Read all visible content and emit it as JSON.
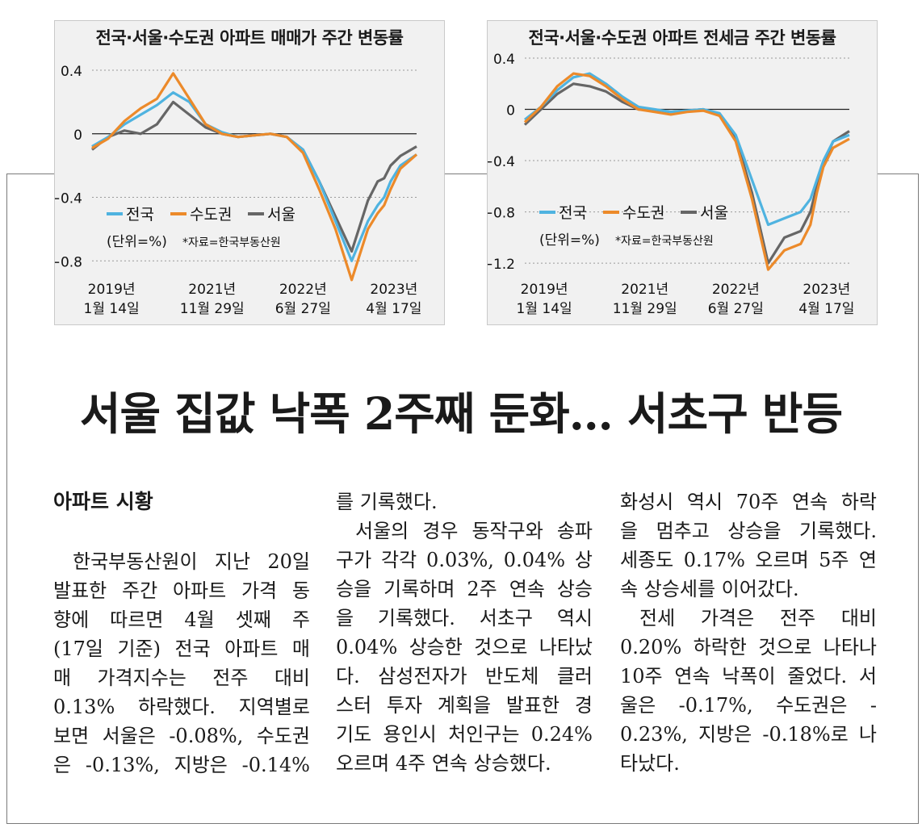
{
  "charts": {
    "left": {
      "title": "전국·서울·수도권 아파트 매매가 주간 변동률",
      "y_ticks": [
        "0.4",
        "0",
        "−0.4",
        "−0.8"
      ],
      "x_ticks": [
        [
          "2019년",
          "1월 14일"
        ],
        [
          "2021년",
          "11월 29일"
        ],
        [
          "2022년",
          "6월 27일"
        ],
        [
          "2023년",
          "4월 17일"
        ]
      ],
      "legend": [
        "전국",
        "수도권",
        "서울"
      ],
      "unit": "(단위=%)",
      "source": "*자료=한국부동산원"
    },
    "right": {
      "title": "전국·서울·수도권 아파트 전세금 주간 변동률",
      "y_ticks": [
        "0.4",
        "0",
        "−0.4",
        "−0.8",
        "−1.2"
      ],
      "x_ticks": [
        [
          "2019년",
          "1월 14일"
        ],
        [
          "2021년",
          "11월 29일"
        ],
        [
          "2022년",
          "6월 27일"
        ],
        [
          "2023년",
          "4월 17일"
        ]
      ],
      "legend": [
        "전국",
        "수도권",
        "서울"
      ],
      "unit": "(단위=%)",
      "source": "*자료=한국부동산원"
    }
  },
  "chart_data": [
    {
      "type": "line",
      "title": "전국·서울·수도권 아파트 매매가 주간 변동률",
      "ylim": [
        -0.9,
        0.4
      ],
      "x": [
        0,
        0.05,
        0.1,
        0.15,
        0.2,
        0.25,
        0.3,
        0.35,
        0.4,
        0.45,
        0.5,
        0.55,
        0.6,
        0.65,
        0.7,
        0.75,
        0.8,
        0.85,
        0.88,
        0.9,
        0.92,
        0.95,
        1.0
      ],
      "series": [
        {
          "name": "전국",
          "color": "#4fb3e0",
          "values": [
            -0.08,
            -0.02,
            0.06,
            0.12,
            0.18,
            0.26,
            0.2,
            0.06,
            0.01,
            -0.02,
            -0.01,
            0.0,
            -0.02,
            -0.1,
            -0.3,
            -0.55,
            -0.8,
            -0.55,
            -0.45,
            -0.4,
            -0.3,
            -0.2,
            -0.13
          ]
        },
        {
          "name": "수도권",
          "color": "#ec8a2a",
          "values": [
            -0.09,
            -0.03,
            0.08,
            0.16,
            0.22,
            0.38,
            0.22,
            0.06,
            0.0,
            -0.02,
            -0.01,
            0.0,
            -0.02,
            -0.12,
            -0.35,
            -0.6,
            -0.92,
            -0.6,
            -0.5,
            -0.45,
            -0.35,
            -0.22,
            -0.13
          ]
        },
        {
          "name": "서울",
          "color": "#666666",
          "values": [
            -0.1,
            -0.02,
            0.02,
            0.0,
            0.06,
            0.2,
            0.12,
            0.04,
            0.0,
            -0.02,
            -0.01,
            0.0,
            -0.02,
            -0.1,
            -0.3,
            -0.52,
            -0.74,
            -0.42,
            -0.3,
            -0.28,
            -0.2,
            -0.14,
            -0.08
          ]
        }
      ]
    },
    {
      "type": "line",
      "title": "전국·서울·수도권 아파트 전세금 주간 변동률",
      "ylim": [
        -1.3,
        0.4
      ],
      "x": [
        0,
        0.05,
        0.1,
        0.15,
        0.2,
        0.25,
        0.3,
        0.35,
        0.4,
        0.45,
        0.5,
        0.55,
        0.6,
        0.65,
        0.7,
        0.75,
        0.8,
        0.85,
        0.88,
        0.9,
        0.92,
        0.95,
        1.0
      ],
      "series": [
        {
          "name": "전국",
          "color": "#4fb3e0",
          "values": [
            -0.08,
            0.02,
            0.15,
            0.25,
            0.28,
            0.2,
            0.1,
            0.02,
            0.0,
            -0.02,
            -0.01,
            0.0,
            -0.03,
            -0.2,
            -0.55,
            -0.9,
            -0.85,
            -0.8,
            -0.7,
            -0.55,
            -0.4,
            -0.25,
            -0.2
          ]
        },
        {
          "name": "수도권",
          "color": "#ec8a2a",
          "values": [
            -0.1,
            0.02,
            0.18,
            0.28,
            0.26,
            0.18,
            0.08,
            0.0,
            -0.02,
            -0.04,
            -0.02,
            -0.01,
            -0.05,
            -0.25,
            -0.7,
            -1.25,
            -1.1,
            -1.05,
            -0.9,
            -0.65,
            -0.45,
            -0.3,
            -0.23
          ]
        },
        {
          "name": "서울",
          "color": "#666666",
          "values": [
            -0.12,
            0.0,
            0.12,
            0.2,
            0.18,
            0.14,
            0.06,
            0.0,
            -0.01,
            -0.02,
            -0.01,
            0.0,
            -0.04,
            -0.22,
            -0.65,
            -1.2,
            -1.0,
            -0.95,
            -0.8,
            -0.6,
            -0.42,
            -0.25,
            -0.17
          ]
        }
      ]
    }
  ],
  "article": {
    "headline": "서울 집값 낙폭 2주째 둔화… 서초구 반등",
    "section": "아파트 시황",
    "col1": [
      "한국부동산원이 지난 20일",
      "발표한 주간 아파트 가격 동",
      "향에 따르면 4월 셋째 주",
      "(17일 기준) 전국 아파트 매",
      "매 가격지수는 전주 대비",
      "0.13% 하락했다. 지역별로",
      "보면 서울은 -0.08%, 수도권",
      "은 -0.13%, 지방은 -0.14%"
    ],
    "col2": [
      "를 기록했다.",
      "서울의 경우 동작구와 송파",
      "구가 각각 0.03%, 0.04% 상",
      "승을 기록하며 2주 연속 상승",
      "을 기록했다. 서초구 역시",
      "0.04% 상승한 것으로 나타났",
      "다. 삼성전자가 반도체 클러",
      "스터 투자 계획을 발표한 경",
      "기도 용인시 처인구는 0.24%",
      "오르며 4주 연속 상승했다."
    ],
    "col3": [
      "화성시 역시 70주 연속 하락",
      "을 멈추고 상승을 기록했다.",
      "세종도 0.17% 오르며 5주 연",
      "속 상승세를 이어갔다.",
      "전세 가격은 전주 대비",
      "0.20% 하락한 것으로 나타나",
      "10주 연속 낙폭이 줄었다. 서",
      "울은 -0.17%, 수도권은 -",
      "0.23%, 지방은 -0.18%로 나",
      "타났다."
    ]
  }
}
